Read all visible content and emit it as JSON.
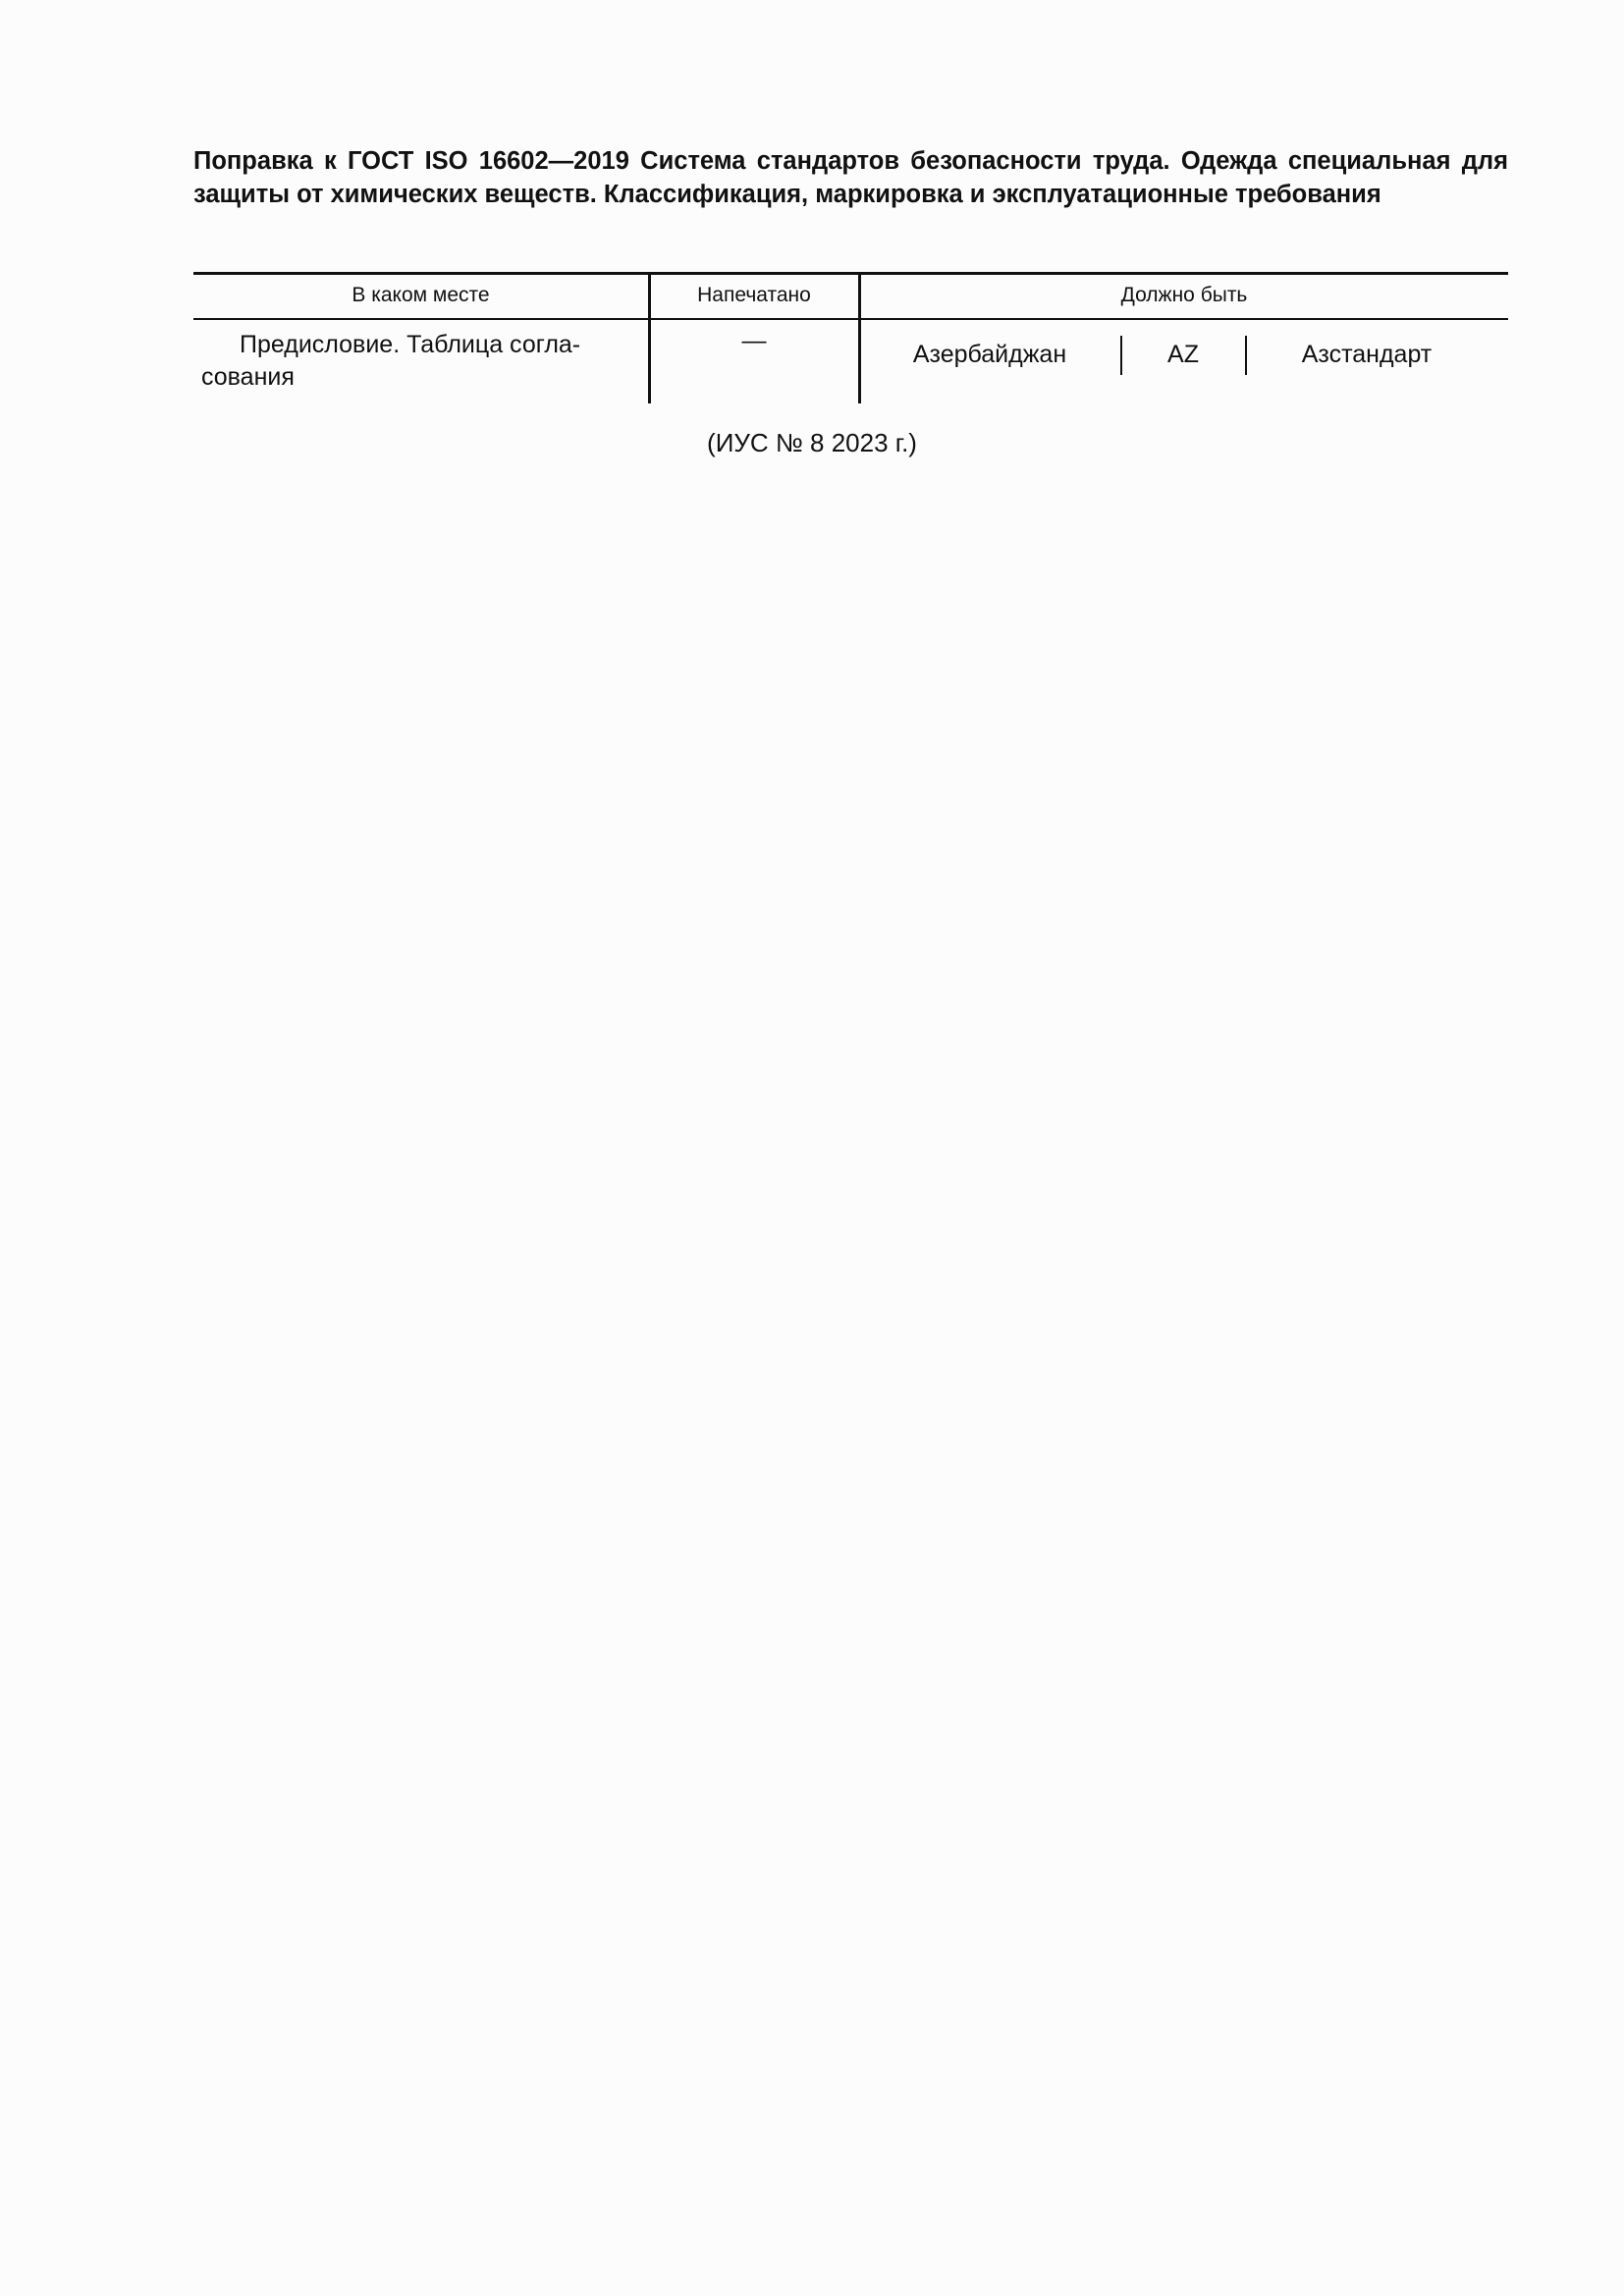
{
  "title": "Поправка к ГОСТ ISO 16602—2019 Система стандартов безопасности труда. Одежда специальная для защиты от химических веществ. Классификация, маркировка и эксплуатационные требования",
  "table": {
    "headers": [
      "В каком месте",
      "Напечатано",
      "Должно быть"
    ],
    "rows": [
      {
        "where": "Предисловие. Таблица согла-сования",
        "where_line1": "Предисловие. Таблица согла-",
        "where_line2": "сования",
        "printed": "—",
        "should_be": [
          "Азербайджан",
          "AZ",
          "Азстандарт"
        ]
      }
    ]
  },
  "footer": "(ИУС № 8  2023 г.)"
}
